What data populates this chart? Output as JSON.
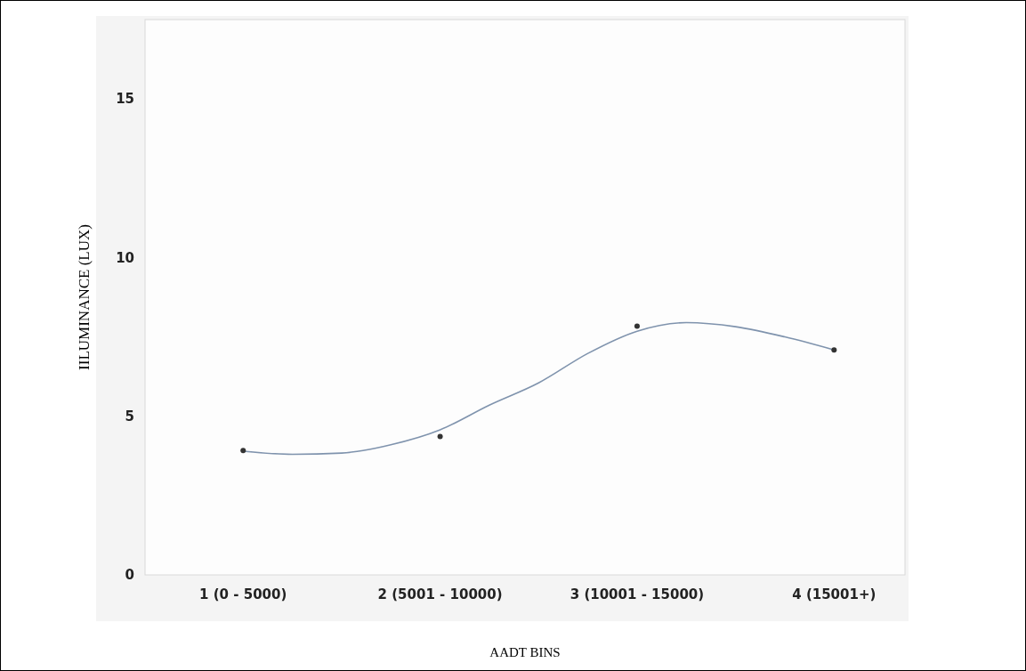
{
  "chart_data": {
    "type": "scatter",
    "xlabel": "AADT BINS",
    "ylabel": "IILUMINANCE (LUX)",
    "categories": [
      "1 (0 - 5000)",
      null,
      null,
      null,
      "2 (5001 - 10000)",
      null,
      null,
      null,
      "3 (10001 - 15000)",
      null,
      null,
      null,
      "4 (15001+)"
    ],
    "ylim": [
      0,
      17.5
    ],
    "yticks": [
      0,
      5,
      10,
      15
    ],
    "grid": false,
    "series": [
      {
        "type": "line",
        "color": "#7f93ad",
        "marker": "none",
        "values": [
          3.9,
          3.8,
          3.84,
          4.1,
          4.57,
          5.35,
          6.05,
          6.98,
          7.68,
          7.95,
          7.82,
          7.5,
          7.09
        ]
      },
      {
        "color": "#333333",
        "marker": "circle",
        "values": [
          3.92,
          null,
          null,
          null,
          4.36,
          null,
          null,
          null,
          7.84,
          null,
          null,
          null,
          7.09
        ]
      }
    ]
  }
}
